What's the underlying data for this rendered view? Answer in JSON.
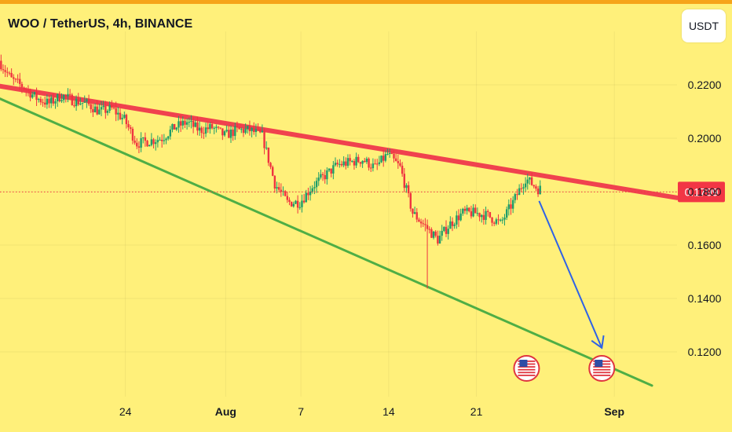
{
  "header": {
    "title": "WOO / TetherUS, 4h, BINANCE",
    "unit_button": "USDT"
  },
  "colors": {
    "background": "#FFF07A",
    "top_accent": "#F6A41A",
    "resistance": "#F0424E",
    "support": "#4FAE45",
    "arrow": "#2F62E6",
    "candle_up": "#1E9E6A",
    "candle_down": "#EF3340",
    "price_tag": "#F23645"
  },
  "icons": [
    "us-flag-event-icon",
    "us-flag-event-icon"
  ],
  "chart_data": {
    "type": "candlestick",
    "title": "WOO / TetherUS, 4h, BINANCE",
    "y_unit": "USDT",
    "ylim": [
      0.1085,
      0.2365
    ],
    "y_ticks": [
      "0.2200",
      "0.2000",
      "0.1800",
      "0.1600",
      "0.1400",
      "0.1200"
    ],
    "y_tick_values": [
      0.22,
      0.2,
      0.18,
      0.16,
      0.14,
      0.12
    ],
    "x_ticks": [
      {
        "label": "24",
        "date": "2023-07-24",
        "bold": false
      },
      {
        "label": "Aug",
        "date": "2023-08-01",
        "bold": true
      },
      {
        "label": "7",
        "date": "2023-08-07",
        "bold": false
      },
      {
        "label": "14",
        "date": "2023-08-14",
        "bold": false
      },
      {
        "label": "21",
        "date": "2023-08-21",
        "bold": false
      },
      {
        "label": "Sep",
        "date": "2023-09-01",
        "bold": true
      }
    ],
    "xlim": [
      "2023-07-14",
      "2023-09-06"
    ],
    "current_price": {
      "label": "0.1799",
      "value": 0.1799
    },
    "close_path": [
      [
        "2023-07-14",
        0.229
      ],
      [
        "2023-07-15",
        0.222
      ],
      [
        "2023-07-16",
        0.219
      ],
      [
        "2023-07-17",
        0.215
      ],
      [
        "2023-07-18",
        0.213
      ],
      [
        "2023-07-19",
        0.216
      ],
      [
        "2023-07-20",
        0.214
      ],
      [
        "2023-07-21",
        0.213
      ],
      [
        "2023-07-22",
        0.21
      ],
      [
        "2023-07-23",
        0.211
      ],
      [
        "2023-07-24",
        0.207
      ],
      [
        "2023-07-25",
        0.198
      ],
      [
        "2023-07-26",
        0.199
      ],
      [
        "2023-07-27",
        0.2
      ],
      [
        "2023-07-28",
        0.204
      ],
      [
        "2023-07-29",
        0.206
      ],
      [
        "2023-07-30",
        0.203
      ],
      [
        "2023-07-31",
        0.204
      ],
      [
        "2023-08-01",
        0.201
      ],
      [
        "2023-08-02",
        0.203
      ],
      [
        "2023-08-03",
        0.203
      ],
      [
        "2023-08-04",
        0.201
      ],
      [
        "2023-08-05",
        0.183
      ],
      [
        "2023-08-06",
        0.176
      ],
      [
        "2023-08-07",
        0.176
      ],
      [
        "2023-08-08",
        0.182
      ],
      [
        "2023-08-09",
        0.186
      ],
      [
        "2023-08-10",
        0.19
      ],
      [
        "2023-08-11",
        0.191
      ],
      [
        "2023-08-12",
        0.192
      ],
      [
        "2023-08-13",
        0.189
      ],
      [
        "2023-08-14",
        0.194
      ],
      [
        "2023-08-15",
        0.189
      ],
      [
        "2023-08-16",
        0.172
      ],
      [
        "2023-08-17",
        0.167
      ],
      [
        "2023-08-18",
        0.162
      ],
      [
        "2023-08-19",
        0.168
      ],
      [
        "2023-08-20",
        0.172
      ],
      [
        "2023-08-21",
        0.172
      ],
      [
        "2023-08-22",
        0.171
      ],
      [
        "2023-08-23",
        0.168
      ],
      [
        "2023-08-24",
        0.176
      ],
      [
        "2023-08-25",
        0.185
      ],
      [
        "2023-08-26",
        0.181
      ]
    ],
    "spike_low": {
      "date": "2023-08-17",
      "value": 0.1437
    },
    "trendlines": [
      {
        "role": "resistance",
        "color": "#F0424E",
        "from": [
          "2023-07-14",
          0.2195
        ],
        "to": [
          "2023-09-06",
          0.1777
        ]
      },
      {
        "role": "support",
        "color": "#4FAE45",
        "from": [
          "2023-07-14",
          0.2148
        ],
        "to": [
          "2023-09-04",
          0.1074
        ]
      }
    ],
    "annotation_arrow": {
      "from": [
        "2023-08-26",
        0.1765
      ],
      "to": [
        "2023-08-31",
        0.1215
      ],
      "color": "#2F62E6"
    },
    "event_markers": [
      "2023-08-25",
      "2023-08-31"
    ],
    "grid": true
  }
}
